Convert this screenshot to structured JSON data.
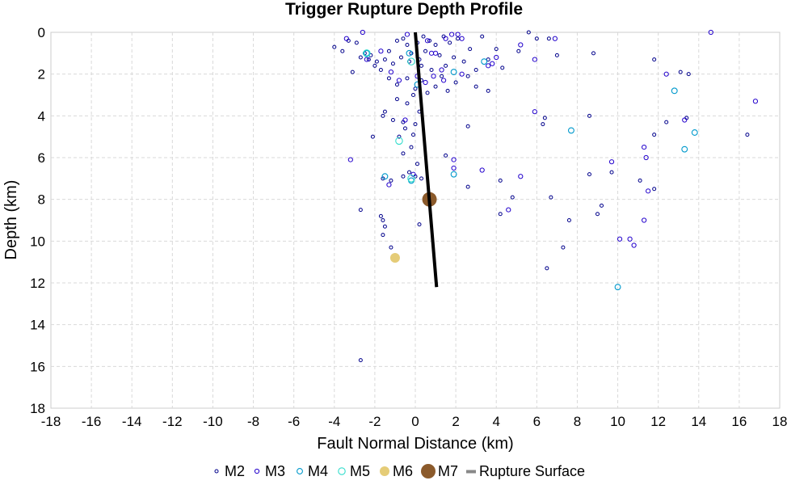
{
  "chart_data": {
    "type": "scatter",
    "title": "Trigger Rupture Depth Profile",
    "xlabel": "Fault Normal Distance (km)",
    "ylabel": "Depth (km)",
    "xlim": [
      -18,
      18
    ],
    "ylim": [
      0,
      18
    ],
    "y_inverted": true,
    "x_ticks": [
      -18,
      -16,
      -14,
      -12,
      -10,
      -8,
      -6,
      -4,
      -2,
      0,
      2,
      4,
      6,
      8,
      10,
      12,
      14,
      16,
      18
    ],
    "y_ticks": [
      0,
      2,
      4,
      6,
      8,
      10,
      12,
      14,
      16,
      18
    ],
    "grid": true,
    "legend_position": "bottom",
    "legend": [
      "M2",
      "M3",
      "M4",
      "M5",
      "M6",
      "M7",
      "Rupture Surface"
    ],
    "colors": {
      "M2": "#00008b",
      "M3": "#2200cc",
      "M4": "#0099cc",
      "M5": "#33ddcc",
      "M6": "#e5cc77",
      "M7": "#8b5a2b",
      "rupture": "#000000"
    },
    "series": [
      {
        "name": "M2",
        "points": [
          [
            -4.0,
            0.7
          ],
          [
            -3.6,
            0.9
          ],
          [
            -3.3,
            0.4
          ],
          [
            -3.1,
            1.9
          ],
          [
            -2.9,
            0.5
          ],
          [
            -2.7,
            1.2
          ],
          [
            -2.5,
            1.0
          ],
          [
            -2.3,
            1.3
          ],
          [
            -2.2,
            1.1
          ],
          [
            -2.0,
            1.6
          ],
          [
            -1.9,
            1.4
          ],
          [
            -1.7,
            1.8
          ],
          [
            -1.5,
            1.3
          ],
          [
            -1.3,
            0.9
          ],
          [
            -1.1,
            1.5
          ],
          [
            -0.9,
            0.4
          ],
          [
            -0.7,
            1.2
          ],
          [
            -0.6,
            0.3
          ],
          [
            -0.4,
            0.6
          ],
          [
            -0.3,
            1.4
          ],
          [
            -0.2,
            1.0
          ],
          [
            0.1,
            0.5
          ],
          [
            0.2,
            1.3
          ],
          [
            0.3,
            1.6
          ],
          [
            0.4,
            0.2
          ],
          [
            0.5,
            0.9
          ],
          [
            0.7,
            0.4
          ],
          [
            0.8,
            1.8
          ],
          [
            1.0,
            0.6
          ],
          [
            1.2,
            1.1
          ],
          [
            1.4,
            0.2
          ],
          [
            1.5,
            1.6
          ],
          [
            1.7,
            0.5
          ],
          [
            1.9,
            1.2
          ],
          [
            2.1,
            0.3
          ],
          [
            2.4,
            1.4
          ],
          [
            2.7,
            0.8
          ],
          [
            3.0,
            1.8
          ],
          [
            3.3,
            0.2
          ],
          [
            3.6,
            1.3
          ],
          [
            4.0,
            0.8
          ],
          [
            4.3,
            1.7
          ],
          [
            5.1,
            0.9
          ],
          [
            5.6,
            0.0
          ],
          [
            6.0,
            0.3
          ],
          [
            6.6,
            0.3
          ],
          [
            7.0,
            1.1
          ],
          [
            8.8,
            1.0
          ],
          [
            11.8,
            1.3
          ],
          [
            13.1,
            1.9
          ],
          [
            13.5,
            2.0
          ],
          [
            -1.3,
            2.2
          ],
          [
            -0.9,
            2.5
          ],
          [
            -0.4,
            2.2
          ],
          [
            0.0,
            2.7
          ],
          [
            0.3,
            2.3
          ],
          [
            0.6,
            2.9
          ],
          [
            1.0,
            2.6
          ],
          [
            1.3,
            2.1
          ],
          [
            1.6,
            2.8
          ],
          [
            2.0,
            2.4
          ],
          [
            2.6,
            2.1
          ],
          [
            3.0,
            2.6
          ],
          [
            3.6,
            2.8
          ],
          [
            -1.5,
            3.8
          ],
          [
            -1.6,
            4.0
          ],
          [
            -0.9,
            3.2
          ],
          [
            -0.4,
            3.4
          ],
          [
            -0.1,
            3.0
          ],
          [
            0.2,
            3.8
          ],
          [
            -1.1,
            4.2
          ],
          [
            -0.6,
            4.3
          ],
          [
            -0.5,
            4.6
          ],
          [
            -0.1,
            4.9
          ],
          [
            0.0,
            4.4
          ],
          [
            -2.1,
            5.0
          ],
          [
            -0.8,
            5.0
          ],
          [
            -0.2,
            5.5
          ],
          [
            -0.6,
            5.8
          ],
          [
            0.1,
            6.3
          ],
          [
            1.5,
            5.9
          ],
          [
            2.6,
            4.5
          ],
          [
            6.3,
            4.4
          ],
          [
            6.4,
            4.1
          ],
          [
            8.6,
            4.0
          ],
          [
            11.8,
            4.9
          ],
          [
            12.4,
            4.3
          ],
          [
            13.4,
            4.1
          ],
          [
            -0.3,
            6.7
          ],
          [
            -0.6,
            6.9
          ],
          [
            0.0,
            6.9
          ],
          [
            0.3,
            7.0
          ],
          [
            -1.2,
            7.1
          ],
          [
            -1.6,
            7.0
          ],
          [
            2.6,
            7.4
          ],
          [
            4.2,
            7.1
          ],
          [
            4.8,
            7.9
          ],
          [
            6.7,
            7.9
          ],
          [
            8.6,
            6.8
          ],
          [
            9.7,
            6.7
          ],
          [
            11.1,
            7.1
          ],
          [
            11.8,
            7.5
          ],
          [
            -2.7,
            8.5
          ],
          [
            -1.7,
            8.8
          ],
          [
            -1.6,
            9.0
          ],
          [
            -1.5,
            9.3
          ],
          [
            -1.6,
            9.7
          ],
          [
            0.2,
            9.2
          ],
          [
            4.2,
            8.7
          ],
          [
            7.6,
            9.0
          ],
          [
            9.2,
            8.3
          ],
          [
            9.0,
            8.7
          ],
          [
            7.3,
            10.3
          ],
          [
            -1.2,
            10.3
          ],
          [
            6.5,
            11.3
          ],
          [
            16.4,
            4.9
          ],
          [
            -2.7,
            15.7
          ]
        ]
      },
      {
        "name": "M3",
        "points": [
          [
            -3.4,
            0.3
          ],
          [
            -2.6,
            0.0
          ],
          [
            -2.4,
            1.3
          ],
          [
            -1.7,
            0.9
          ],
          [
            -0.4,
            0.1
          ],
          [
            0.6,
            0.4
          ],
          [
            1.0,
            1.0
          ],
          [
            1.3,
            1.8
          ],
          [
            1.5,
            0.3
          ],
          [
            1.8,
            0.1
          ],
          [
            2.1,
            0.1
          ],
          [
            2.3,
            0.3
          ],
          [
            3.6,
            1.6
          ],
          [
            3.8,
            1.5
          ],
          [
            4.0,
            1.2
          ],
          [
            5.2,
            0.6
          ],
          [
            5.9,
            1.3
          ],
          [
            6.9,
            0.3
          ],
          [
            12.4,
            2.0
          ],
          [
            14.6,
            0.0
          ],
          [
            -1.2,
            1.9
          ],
          [
            -0.8,
            2.3
          ],
          [
            0.1,
            2.1
          ],
          [
            0.5,
            2.4
          ],
          [
            0.9,
            2.1
          ],
          [
            1.4,
            2.3
          ],
          [
            2.3,
            2.0
          ],
          [
            -0.5,
            4.2
          ],
          [
            5.9,
            3.8
          ],
          [
            11.3,
            5.5
          ],
          [
            13.3,
            4.2
          ],
          [
            16.8,
            3.3
          ],
          [
            -3.2,
            6.1
          ],
          [
            -1.3,
            7.3
          ],
          [
            -0.1,
            6.8
          ],
          [
            1.9,
            6.5
          ],
          [
            3.3,
            6.6
          ],
          [
            5.2,
            6.9
          ],
          [
            9.7,
            6.2
          ],
          [
            11.4,
            6.0
          ],
          [
            11.5,
            7.6
          ],
          [
            4.6,
            8.5
          ],
          [
            11.3,
            9.0
          ],
          [
            10.1,
            9.9
          ],
          [
            10.6,
            9.9
          ],
          [
            10.8,
            10.2
          ],
          [
            1.9,
            6.1
          ],
          [
            0.8,
            1.0
          ]
        ]
      },
      {
        "name": "M4",
        "points": [
          [
            -2.4,
            1.0
          ],
          [
            0.1,
            2.5
          ],
          [
            1.9,
            1.9
          ],
          [
            3.4,
            1.4
          ],
          [
            -1.5,
            6.9
          ],
          [
            -0.2,
            7.1
          ],
          [
            1.9,
            6.8
          ],
          [
            7.7,
            4.7
          ],
          [
            12.8,
            2.8
          ],
          [
            13.3,
            5.6
          ],
          [
            13.8,
            4.8
          ],
          [
            10.0,
            12.2
          ],
          [
            -0.3,
            1.0
          ]
        ]
      },
      {
        "name": "M5",
        "points": [
          [
            -2.4,
            1.0
          ],
          [
            -0.2,
            1.4
          ],
          [
            -0.8,
            5.2
          ],
          [
            -0.2,
            7.0
          ]
        ]
      },
      {
        "name": "M6",
        "points": [
          [
            -1.0,
            10.8
          ]
        ]
      },
      {
        "name": "M7",
        "points": [
          [
            0.7,
            8.0
          ]
        ]
      }
    ],
    "rupture_surface": {
      "name": "Rupture Surface",
      "points": [
        [
          0.0,
          0.0
        ],
        [
          1.05,
          12.2
        ]
      ]
    }
  }
}
